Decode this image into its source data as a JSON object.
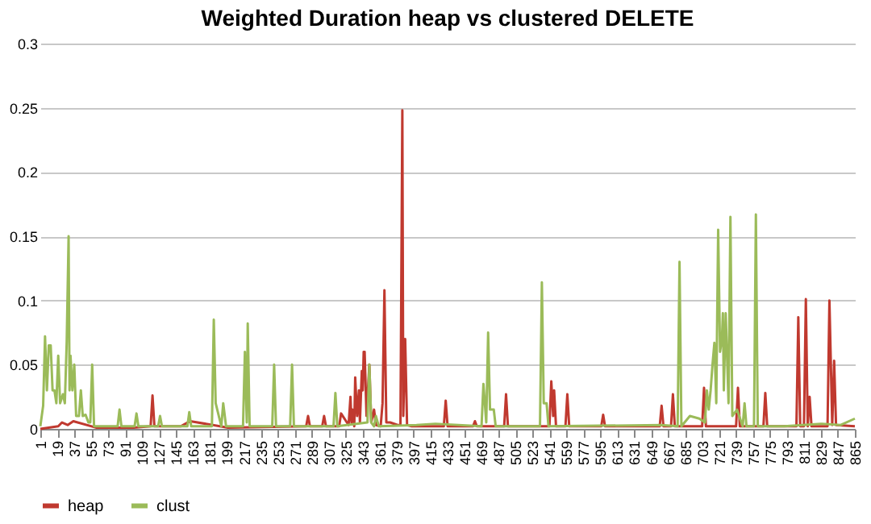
{
  "chart_data": {
    "type": "line",
    "title": "Weighted Duration heap vs clustered DELETE",
    "xlim": [
      1,
      865
    ],
    "xticks": [
      1,
      19,
      37,
      55,
      73,
      91,
      109,
      127,
      145,
      163,
      181,
      199,
      217,
      235,
      253,
      271,
      289,
      307,
      325,
      343,
      361,
      379,
      397,
      415,
      433,
      451,
      469,
      487,
      505,
      523,
      541,
      559,
      577,
      595,
      613,
      631,
      649,
      667,
      685,
      703,
      721,
      739,
      757,
      775,
      793,
      811,
      829,
      847,
      865
    ],
    "ylim": [
      0,
      0.3
    ],
    "yticks": [
      0,
      0.05,
      0.1,
      0.15,
      0.2,
      0.25,
      0.3
    ],
    "grid": "y",
    "legend": "bottom",
    "marker": "none",
    "line_style": "solid",
    "series": [
      {
        "name": "heap",
        "color": "#c0392f",
        "x": [
          1,
          20,
          24,
          30,
          36,
          60,
          100,
          118,
          120,
          122,
          150,
          160,
          200,
          283,
          285,
          287,
          300,
          302,
          304,
          318,
          320,
          328,
          330,
          331,
          332,
          334,
          335,
          337,
          339,
          340,
          342,
          343,
          344,
          345,
          347,
          350,
          352,
          355,
          357,
          362,
          364,
          366,
          368,
          372,
          380,
          383,
          385,
          386,
          388,
          390,
          395,
          429,
          431,
          433,
          460,
          462,
          464,
          493,
          495,
          497,
          541,
          543,
          545,
          546,
          548,
          558,
          560,
          562,
          596,
          598,
          600,
          658,
          660,
          662,
          670,
          672,
          674,
          703,
          705,
          707,
          739,
          741,
          743,
          768,
          770,
          772,
          803,
          805,
          807,
          811,
          813,
          815,
          817,
          819,
          836,
          838,
          841,
          843,
          845,
          865
        ],
        "values": [
          0.0,
          0.002,
          0.005,
          0.003,
          0.006,
          0.001,
          0.001,
          0.002,
          0.026,
          0.002,
          0.002,
          0.006,
          0.001,
          0.002,
          0.01,
          0.002,
          0.002,
          0.01,
          0.002,
          0.002,
          0.012,
          0.003,
          0.025,
          0.005,
          0.015,
          0.002,
          0.04,
          0.01,
          0.03,
          0.005,
          0.045,
          0.03,
          0.06,
          0.06,
          0.01,
          0.05,
          0.005,
          0.015,
          0.003,
          0.002,
          0.02,
          0.108,
          0.005,
          0.005,
          0.003,
          0.003,
          0.248,
          0.01,
          0.07,
          0.003,
          0.002,
          0.002,
          0.022,
          0.002,
          0.002,
          0.006,
          0.002,
          0.002,
          0.027,
          0.002,
          0.002,
          0.037,
          0.01,
          0.03,
          0.002,
          0.002,
          0.027,
          0.002,
          0.002,
          0.011,
          0.002,
          0.002,
          0.018,
          0.002,
          0.002,
          0.027,
          0.002,
          0.002,
          0.032,
          0.002,
          0.002,
          0.032,
          0.002,
          0.002,
          0.028,
          0.002,
          0.002,
          0.087,
          0.002,
          0.002,
          0.101,
          0.002,
          0.025,
          0.002,
          0.002,
          0.1,
          0.003,
          0.053,
          0.003,
          0.002
        ]
      },
      {
        "name": "clust",
        "color": "#9bbb59",
        "x": [
          1,
          4,
          6,
          8,
          10,
          12,
          14,
          16,
          18,
          20,
          22,
          25,
          27,
          29,
          31,
          32,
          33,
          35,
          37,
          39,
          42,
          44,
          46,
          49,
          52,
          54,
          56,
          58,
          62,
          83,
          85,
          87,
          101,
          103,
          105,
          126,
          128,
          130,
          157,
          159,
          161,
          183,
          185,
          187,
          193,
          195,
          198,
          216,
          218,
          220,
          221,
          223,
          247,
          249,
          251,
          266,
          268,
          270,
          312,
          314,
          316,
          348,
          350,
          352,
          355,
          357,
          360,
          400,
          420,
          469,
          471,
          474,
          476,
          478,
          482,
          484,
          531,
          533,
          535,
          538,
          540,
          660,
          677,
          679,
          681,
          690,
          700,
          706,
          708,
          710,
          712,
          714,
          716,
          718,
          719,
          720,
          722,
          724,
          725,
          726,
          728,
          731,
          733,
          735,
          740,
          746,
          748,
          750,
          758,
          760,
          762,
          790,
          830,
          850,
          865
        ],
        "values": [
          0.002,
          0.018,
          0.072,
          0.03,
          0.065,
          0.065,
          0.03,
          0.03,
          0.02,
          0.057,
          0.02,
          0.027,
          0.02,
          0.068,
          0.15,
          0.03,
          0.057,
          0.03,
          0.05,
          0.01,
          0.01,
          0.03,
          0.01,
          0.011,
          0.005,
          0.005,
          0.05,
          0.002,
          0.002,
          0.002,
          0.015,
          0.002,
          0.002,
          0.012,
          0.002,
          0.002,
          0.01,
          0.002,
          0.002,
          0.013,
          0.002,
          0.002,
          0.085,
          0.02,
          0.002,
          0.02,
          0.002,
          0.002,
          0.06,
          0.005,
          0.082,
          0.002,
          0.002,
          0.05,
          0.002,
          0.002,
          0.05,
          0.002,
          0.002,
          0.028,
          0.002,
          0.005,
          0.05,
          0.005,
          0.002,
          0.01,
          0.002,
          0.003,
          0.004,
          0.002,
          0.035,
          0.005,
          0.075,
          0.015,
          0.015,
          0.002,
          0.002,
          0.114,
          0.02,
          0.02,
          0.002,
          0.003,
          0.002,
          0.13,
          0.002,
          0.01,
          0.008,
          0.005,
          0.03,
          0.015,
          0.03,
          0.05,
          0.067,
          0.02,
          0.09,
          0.155,
          0.06,
          0.07,
          0.09,
          0.03,
          0.09,
          0.02,
          0.165,
          0.01,
          0.015,
          0.002,
          0.02,
          0.002,
          0.002,
          0.167,
          0.002,
          0.002,
          0.004,
          0.003,
          0.008
        ]
      }
    ]
  }
}
